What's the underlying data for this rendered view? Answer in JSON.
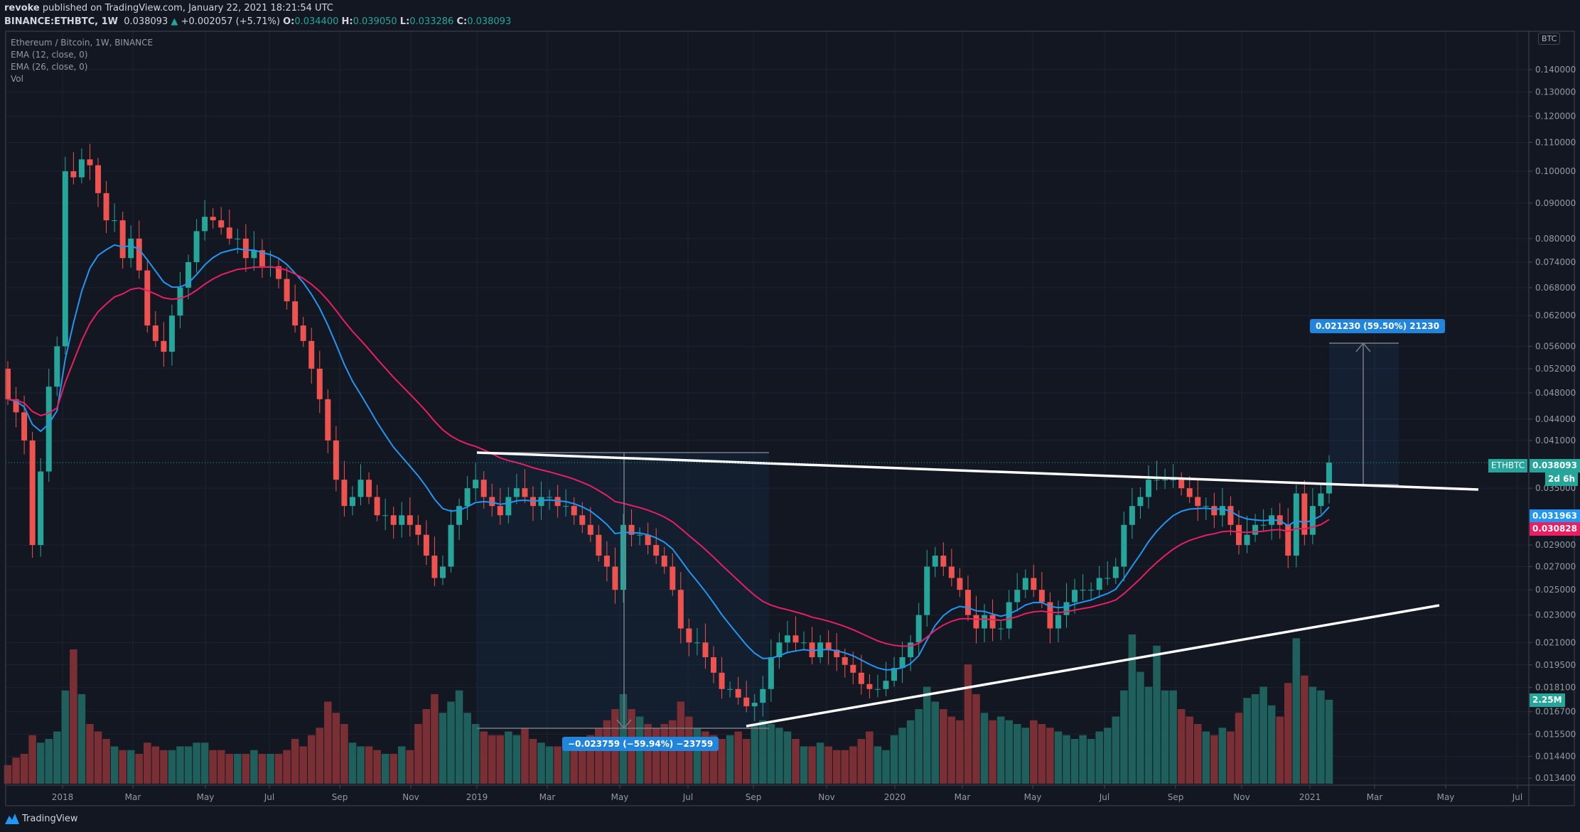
{
  "header": {
    "author": "revoke",
    "published": "published on TradingView.com, January 22, 2021 18:21:54 UTC",
    "symbol": "BINANCE:ETHBTC, 1W",
    "last": "0.038093",
    "change": "+0.002057 (+5.71%)",
    "o_label": "O:",
    "o": "0.034400",
    "h_label": "H:",
    "h": "0.039050",
    "l_label": "L:",
    "l": "0.033286",
    "c_label": "C:",
    "c": "0.038093"
  },
  "legend": [
    "Ethereum / Bitcoin, 1W, BINANCE",
    "EMA (12, close, 0)",
    "EMA (26, close, 0)",
    "Vol"
  ],
  "currency_badge": "BTC",
  "price_tags": {
    "symbol": "ETHBTC",
    "last": "0.038093",
    "countdown": "2d 6h",
    "ema12": "0.031963",
    "ema26": "0.030828",
    "volume": "2.25M"
  },
  "measure": {
    "down": "−0.023759 (−59.94%) −23759",
    "up": "0.021230 (59.50%) 21230"
  },
  "footer": {
    "brand": "TradingView"
  },
  "colors": {
    "up": "#26a69a",
    "down": "#ef5350",
    "ema12": "#2196f3",
    "ema26": "#e91e63",
    "bg": "#131722"
  },
  "chart_data": {
    "type": "candlestick",
    "title": "Ethereum / Bitcoin, 1W, BINANCE",
    "scale": "log",
    "y_ticks": [
      "0.140000",
      "0.130000",
      "0.120000",
      "0.110000",
      "0.100000",
      "0.090000",
      "0.080000",
      "0.074000",
      "0.068000",
      "0.062000",
      "0.056000",
      "0.052000",
      "0.048000",
      "0.044000",
      "0.041000",
      "0.035000",
      "0.029000",
      "0.027000",
      "0.025000",
      "0.023000",
      "0.021000",
      "0.019500",
      "0.018100",
      "0.016700",
      "0.015500",
      "0.014400",
      "0.013400"
    ],
    "x_ticks": [
      "2018",
      "Mar",
      "May",
      "Jul",
      "Sep",
      "Nov",
      "2019",
      "Mar",
      "May",
      "Jul",
      "Sep",
      "Nov",
      "2020",
      "Mar",
      "May",
      "Jul",
      "Sep",
      "Nov",
      "2021",
      "Mar",
      "May",
      "Jul"
    ],
    "first_open": 0.052,
    "close": [
      0.047,
      0.045,
      0.041,
      0.029,
      0.037,
      0.049,
      0.056,
      0.1,
      0.098,
      0.104,
      0.102,
      0.093,
      0.085,
      0.085,
      0.075,
      0.08,
      0.072,
      0.06,
      0.057,
      0.055,
      0.062,
      0.068,
      0.074,
      0.082,
      0.086,
      0.085,
      0.083,
      0.08,
      0.08,
      0.075,
      0.077,
      0.073,
      0.073,
      0.07,
      0.065,
      0.06,
      0.057,
      0.052,
      0.047,
      0.041,
      0.036,
      0.033,
      0.034,
      0.036,
      0.034,
      0.032,
      0.032,
      0.031,
      0.032,
      0.031,
      0.03,
      0.028,
      0.026,
      0.027,
      0.031,
      0.033,
      0.035,
      0.036,
      0.034,
      0.033,
      0.032,
      0.034,
      0.035,
      0.034,
      0.033,
      0.034,
      0.034,
      0.033,
      0.033,
      0.032,
      0.031,
      0.03,
      0.028,
      0.027,
      0.025,
      0.031,
      0.03,
      0.03,
      0.029,
      0.028,
      0.027,
      0.025,
      0.022,
      0.021,
      0.021,
      0.02,
      0.019,
      0.018,
      0.018,
      0.0175,
      0.017,
      0.0172,
      0.018,
      0.02,
      0.021,
      0.0215,
      0.021,
      0.021,
      0.02,
      0.021,
      0.0205,
      0.02,
      0.0195,
      0.019,
      0.0183,
      0.018,
      0.018,
      0.0185,
      0.0193,
      0.02,
      0.021,
      0.023,
      0.027,
      0.028,
      0.027,
      0.026,
      0.025,
      0.023,
      0.022,
      0.023,
      0.022,
      0.022,
      0.024,
      0.025,
      0.026,
      0.025,
      0.024,
      0.022,
      0.023,
      0.024,
      0.025,
      0.025,
      0.025,
      0.026,
      0.026,
      0.027,
      0.031,
      0.033,
      0.034,
      0.036,
      0.036,
      0.036,
      0.036,
      0.035,
      0.034,
      0.033,
      0.033,
      0.032,
      0.033,
      0.031,
      0.029,
      0.03,
      0.031,
      0.031,
      0.032,
      0.031,
      0.028,
      0.0344,
      0.03,
      0.033,
      0.0344,
      0.038093
    ],
    "last_candle": {
      "open": 0.0344,
      "high": 0.03905,
      "low": 0.033286,
      "close": 0.038093
    },
    "volume_m": [
      0.5,
      0.7,
      0.8,
      1.3,
      1.1,
      1.2,
      1.4,
      2.5,
      3.6,
      2.4,
      1.6,
      1.4,
      1.2,
      1.0,
      0.9,
      0.9,
      0.8,
      1.1,
      1.0,
      0.9,
      0.9,
      1.0,
      1.0,
      1.1,
      1.1,
      0.9,
      0.9,
      0.8,
      0.8,
      0.8,
      0.9,
      0.8,
      0.8,
      0.8,
      0.9,
      1.2,
      1.0,
      1.3,
      1.5,
      2.2,
      1.9,
      1.6,
      1.1,
      1.0,
      1.0,
      0.9,
      0.8,
      0.8,
      1.0,
      0.9,
      1.6,
      2.0,
      2.4,
      1.9,
      2.2,
      2.5,
      1.9,
      1.6,
      1.4,
      1.3,
      1.3,
      1.4,
      1.3,
      1.5,
      1.2,
      1.1,
      1.0,
      1.0,
      0.9,
      1.0,
      1.1,
      1.3,
      1.5,
      1.7,
      2.0,
      2.4,
      2.0,
      1.8,
      1.6,
      1.5,
      1.6,
      1.7,
      2.2,
      1.8,
      1.5,
      1.4,
      1.3,
      1.2,
      1.3,
      1.4,
      1.2,
      1.6,
      1.7,
      1.6,
      1.5,
      1.4,
      1.2,
      1.0,
      1.0,
      1.1,
      1.0,
      0.9,
      0.9,
      1.0,
      1.2,
      1.4,
      1.0,
      0.9,
      1.3,
      1.5,
      1.7,
      2.0,
      2.6,
      2.2,
      2.0,
      1.8,
      1.7,
      3.2,
      2.4,
      1.9,
      1.7,
      1.8,
      1.7,
      1.6,
      1.5,
      1.7,
      1.6,
      1.5,
      1.4,
      1.3,
      1.2,
      1.3,
      1.2,
      1.4,
      1.5,
      1.8,
      2.5,
      4.0,
      3.0,
      2.6,
      3.7,
      2.5,
      2.5,
      2.0,
      1.8,
      1.6,
      1.4,
      1.3,
      1.5,
      1.4,
      1.9,
      2.3,
      2.4,
      2.6,
      2.1,
      1.8,
      2.7,
      3.9,
      2.9,
      2.6,
      2.5,
      2.25
    ],
    "ema_periods": [
      12,
      26
    ],
    "trendlines": [
      {
        "name": "resistance",
        "from_price": 0.0385,
        "to_price": 0.034
      },
      {
        "name": "support",
        "from_price": 0.0163,
        "to_price": 0.0244
      }
    ],
    "measurements": [
      {
        "from": 0.03964,
        "to": 0.015881,
        "change": -0.023759,
        "pct": -59.94
      },
      {
        "from": 0.035681,
        "to": 0.056911,
        "change": 0.02123,
        "pct": 59.5
      }
    ]
  }
}
